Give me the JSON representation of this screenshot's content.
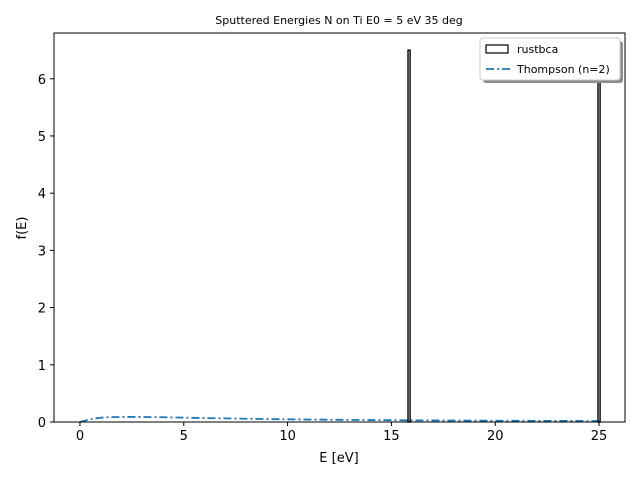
{
  "chart_data": {
    "type": "bar",
    "title": "Sputtered Energies N on Ti E0 = 5 eV 35 deg",
    "xlabel": "E [eV]",
    "ylabel": "f(E)",
    "xlim": [
      -1.25,
      26.25
    ],
    "ylim": [
      0,
      6.8
    ],
    "xticks": [
      0,
      5,
      10,
      15,
      20,
      25
    ],
    "yticks": [
      0,
      1,
      2,
      3,
      4,
      5,
      6
    ],
    "grid": false,
    "legend_position": "top-right",
    "series": [
      {
        "name": "rustbca",
        "kind": "histogram",
        "edgecolor": "#000000",
        "bars": [
          {
            "x0": 15.8,
            "x1": 15.9,
            "height": 6.5
          },
          {
            "x0": 24.95,
            "x1": 25.05,
            "height": 6.5
          }
        ]
      },
      {
        "name": "Thompson (n=2)",
        "kind": "line",
        "linestyle": "dash-dot",
        "color": "#1f77b4",
        "x": [
          0,
          0.5,
          1,
          1.5,
          2,
          2.5,
          3,
          4,
          5,
          6,
          7,
          8,
          9,
          10,
          12,
          14,
          16,
          18,
          20,
          22,
          24,
          25
        ],
        "y": [
          0.0,
          0.05,
          0.075,
          0.085,
          0.088,
          0.089,
          0.088,
          0.083,
          0.076,
          0.069,
          0.063,
          0.057,
          0.052,
          0.047,
          0.04,
          0.034,
          0.029,
          0.026,
          0.022,
          0.02,
          0.018,
          0.017
        ]
      }
    ]
  }
}
